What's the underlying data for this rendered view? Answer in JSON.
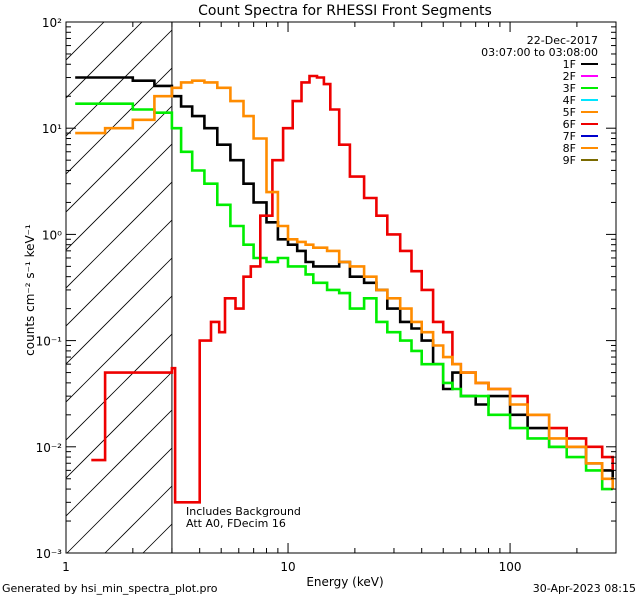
{
  "chart_data": {
    "type": "line",
    "title": "Count Spectra for RHESSI Front Segments",
    "xlabel": "Energy (keV)",
    "ylabel": "counts cm⁻² s⁻¹ keV⁻¹",
    "xscale": "log",
    "yscale": "log",
    "xlim": [
      1,
      300
    ],
    "ylim": [
      0.001,
      100
    ],
    "xticks": [
      {
        "value": 1,
        "label": "1"
      },
      {
        "value": 10,
        "label": "10"
      },
      {
        "value": 100,
        "label": "100"
      }
    ],
    "yticks": [
      {
        "value": 0.001,
        "label": "10⁻³"
      },
      {
        "value": 0.01,
        "label": "10⁻²"
      },
      {
        "value": 0.1,
        "label": "10⁻¹"
      },
      {
        "value": 1,
        "label": "10⁰"
      },
      {
        "value": 10,
        "label": "10¹"
      },
      {
        "value": 100,
        "label": "10²"
      }
    ],
    "date": "22-Dec-2017",
    "time_range": "03:07:00 to 03:08:00",
    "annotation_lines": [
      "Includes Background",
      "Att A0, FDecim 16"
    ],
    "shaded_region": {
      "x_min": 1,
      "x_max": 3,
      "style": "hatched"
    },
    "legend": [
      {
        "label": "1F",
        "color": "#000000"
      },
      {
        "label": "2F",
        "color": "#ff00ff"
      },
      {
        "label": "3F",
        "color": "#00ee00"
      },
      {
        "label": "4F",
        "color": "#00e5ff"
      },
      {
        "label": "5F",
        "color": "#ff8c00"
      },
      {
        "label": "6F",
        "color": "#ee0000"
      },
      {
        "label": "7F",
        "color": "#0000cc"
      },
      {
        "label": "8F",
        "color": "#ff8c00"
      },
      {
        "label": "9F",
        "color": "#7a6a00"
      }
    ],
    "series": [
      {
        "name": "1F",
        "color": "#000000",
        "x": [
          1.1,
          1.5,
          2,
          2.5,
          3,
          3.3,
          3.7,
          4.2,
          4.8,
          5.5,
          6.3,
          7,
          8,
          9,
          10,
          11,
          12,
          13,
          15,
          17,
          19,
          22,
          25,
          28,
          32,
          36,
          40,
          45,
          50,
          55,
          60,
          70,
          80,
          100,
          120,
          150,
          180,
          220,
          260,
          290
        ],
        "y": [
          30,
          30,
          28,
          25,
          20,
          16,
          13,
          10,
          7,
          5,
          3,
          2,
          1.3,
          0.9,
          0.8,
          0.7,
          0.55,
          0.5,
          0.5,
          0.55,
          0.4,
          0.35,
          0.3,
          0.2,
          0.15,
          0.13,
          0.1,
          0.06,
          0.035,
          0.05,
          0.03,
          0.025,
          0.03,
          0.02,
          0.015,
          0.01,
          0.01,
          0.007,
          0.006,
          0.005
        ]
      },
      {
        "name": "3F",
        "color": "#00ee00",
        "x": [
          1.1,
          1.5,
          2,
          2.5,
          3,
          3.3,
          3.7,
          4.2,
          4.8,
          5.5,
          6.3,
          7,
          8,
          9,
          10,
          11,
          12,
          13,
          15,
          17,
          19,
          22,
          25,
          28,
          32,
          36,
          40,
          45,
          50,
          55,
          60,
          70,
          80,
          100,
          120,
          150,
          180,
          220,
          260,
          290
        ],
        "y": [
          17,
          17,
          15,
          14,
          10,
          6,
          4,
          3,
          1.9,
          1.2,
          0.8,
          0.6,
          0.55,
          0.6,
          0.5,
          0.5,
          0.42,
          0.35,
          0.3,
          0.28,
          0.2,
          0.25,
          0.15,
          0.12,
          0.1,
          0.08,
          0.06,
          0.06,
          0.04,
          0.035,
          0.03,
          0.03,
          0.02,
          0.015,
          0.012,
          0.01,
          0.008,
          0.006,
          0.004,
          0.004
        ]
      },
      {
        "name": "6F",
        "color": "#ee0000",
        "x": [
          1.3,
          1.3,
          1.5,
          1.5,
          1.6,
          1.6,
          3,
          3.1,
          3.1,
          3.4,
          3.4,
          4,
          4.5,
          4.9,
          5.2,
          5.8,
          6.3,
          6.8,
          7.5,
          8.5,
          9.5,
          10.5,
          11.5,
          12.5,
          13.5,
          14.5,
          15.5,
          17,
          19,
          22,
          25,
          28,
          32,
          36,
          40,
          45,
          50,
          55,
          60,
          70,
          80,
          100,
          120,
          150,
          180,
          220,
          260,
          290
        ],
        "y": [
          0.0075,
          0.0075,
          0.0075,
          0.05,
          0.05,
          0.05,
          0.055,
          0.055,
          0.003,
          0.003,
          0.003,
          0.1,
          0.15,
          0.12,
          0.25,
          0.2,
          0.4,
          0.5,
          1.5,
          5,
          10,
          18,
          27,
          31,
          30,
          26,
          15,
          7,
          3.5,
          2.2,
          1.5,
          1,
          0.7,
          0.45,
          0.3,
          0.15,
          0.12,
          0.06,
          0.05,
          0.04,
          0.035,
          0.03,
          0.02,
          0.015,
          0.012,
          0.01,
          0.008,
          0.006
        ]
      },
      {
        "name": "8F",
        "color": "#ff8c00",
        "x": [
          1.1,
          1.5,
          2,
          2.5,
          3,
          3.3,
          3.7,
          4.2,
          4.8,
          5.5,
          6.3,
          7,
          8,
          9,
          10,
          11,
          12,
          13,
          15,
          17,
          19,
          22,
          25,
          28,
          32,
          36,
          40,
          45,
          50,
          55,
          60,
          70,
          80,
          100,
          120,
          150,
          180,
          220,
          260,
          290
        ],
        "y": [
          9,
          10,
          12,
          20,
          24,
          27,
          28,
          27,
          24,
          18,
          13,
          8,
          2.5,
          1.2,
          0.9,
          0.85,
          0.8,
          0.75,
          0.7,
          0.55,
          0.5,
          0.4,
          0.3,
          0.25,
          0.2,
          0.15,
          0.12,
          0.09,
          0.07,
          0.06,
          0.05,
          0.04,
          0.035,
          0.025,
          0.02,
          0.012,
          0.01,
          0.007,
          0.005,
          0.004
        ]
      }
    ]
  },
  "footer": {
    "left": "Generated by hsi_min_spectra_plot.pro",
    "right": "30-Apr-2023 08:15"
  }
}
